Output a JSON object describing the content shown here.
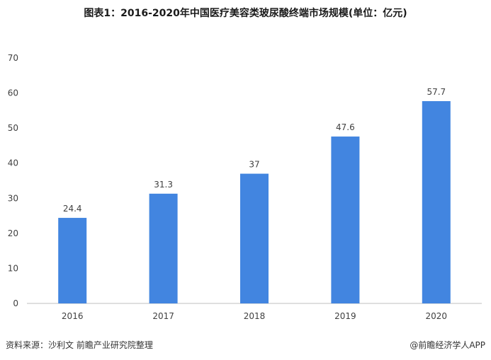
{
  "chart_data": {
    "type": "bar",
    "title": "图表1：2016-2020年中国医疗美容类玻尿酸终端市场规模(单位：亿元)",
    "categories": [
      "2016",
      "2017",
      "2018",
      "2019",
      "2020"
    ],
    "values": [
      24.4,
      31.3,
      37,
      47.6,
      57.7
    ],
    "value_labels": [
      "24.4",
      "31.3",
      "37",
      "47.6",
      "57.7"
    ],
    "xlabel": "",
    "ylabel": "",
    "ylim": [
      0,
      70
    ],
    "yticks": [
      0,
      10,
      20,
      30,
      40,
      50,
      60,
      70
    ],
    "grid": false,
    "bar_color": "#4285e0"
  },
  "footer": {
    "source": "资料来源：沙利文 前瞻产业研究院整理",
    "brand": "@前瞻经济学人APP"
  }
}
